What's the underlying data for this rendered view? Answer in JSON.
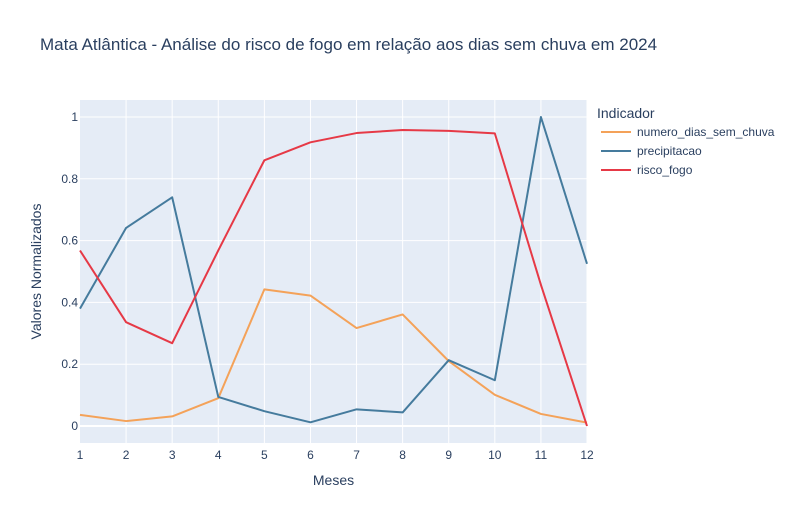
{
  "chart_data": {
    "type": "line",
    "title": "Mata Atlântica - Análise do risco de fogo em relação aos dias sem chuva em 2024",
    "xlabel": "Meses",
    "ylabel": "Valores Normalizados",
    "x": [
      1,
      2,
      3,
      4,
      5,
      6,
      7,
      8,
      9,
      10,
      11,
      12
    ],
    "x_ticks": [
      "1",
      "2",
      "3",
      "4",
      "5",
      "6",
      "7",
      "8",
      "9",
      "10",
      "11",
      "12"
    ],
    "xlim": [
      1,
      12
    ],
    "ylim": [
      -0.055,
      1.055
    ],
    "y_ticks": [
      0,
      0.2,
      0.4,
      0.6,
      0.8,
      1
    ],
    "y_tick_labels": [
      "0",
      "0.2",
      "0.4",
      "0.6",
      "0.8",
      "1"
    ],
    "grid": true,
    "legend_title": "Indicador",
    "legend_position": "right",
    "series": [
      {
        "name": "numero_dias_sem_chuva",
        "color": "#f4a259",
        "values": [
          0.036,
          0.016,
          0.031,
          0.09,
          0.442,
          0.422,
          0.317,
          0.361,
          0.21,
          0.101,
          0.039,
          0.011
        ]
      },
      {
        "name": "precipitacao",
        "color": "#457b9d",
        "values": [
          0.38,
          0.641,
          0.74,
          0.094,
          0.048,
          0.012,
          0.054,
          0.044,
          0.213,
          0.148,
          1.0,
          0.525
        ]
      },
      {
        "name": "risco_fogo",
        "color": "#e63946",
        "values": [
          0.568,
          0.336,
          0.268,
          0.568,
          0.86,
          0.918,
          0.948,
          0.958,
          0.955,
          0.947,
          0.457,
          0.0
        ]
      }
    ]
  }
}
